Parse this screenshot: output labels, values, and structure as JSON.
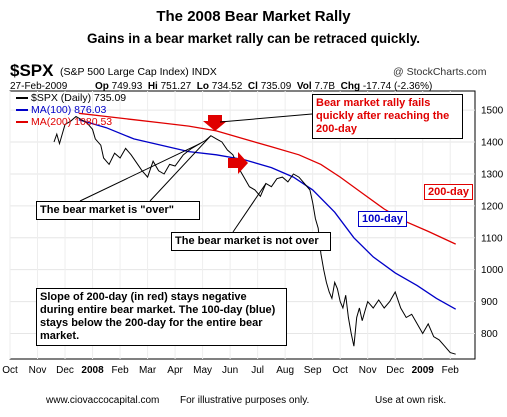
{
  "title": "The 2008 Bear Market Rally",
  "subtitle": "Gains in a bear market rally can be retraced quickly.",
  "header": {
    "symbol": "$SPX",
    "description": "(S&P 500 Large Cap Index) INDX",
    "brand": "@ StockCharts.com",
    "date": "27-Feb-2009",
    "op_label": "Op",
    "op": "749.93",
    "hi_label": "Hi",
    "hi": "751.27",
    "lo_label": "Lo",
    "lo": "734.52",
    "cl_label": "Cl",
    "cl": "735.09",
    "vol_label": "Vol",
    "vol": "7.7B",
    "chg_label": "Chg",
    "chg": "-17.74 (-2.36%)"
  },
  "legend": [
    {
      "label": "$SPX (Daily) 735.09",
      "color": "#000000"
    },
    {
      "label": "MA(100) 876.03",
      "color": "#0000c8"
    },
    {
      "label": "MA(200) 1080.53",
      "color": "#e00000"
    }
  ],
  "annotations": {
    "rally_fails": "Bear market rally fails quickly after reaching the 200-day",
    "bear_over": "The bear market is \"over\"",
    "bear_not_over": "The bear market is not over",
    "slope": "Slope of 200-day (in red) stays negative during entire bear market.  The 100-day (blue) stays below the 200-day for the entire bear market.",
    "label_200": "200-day",
    "label_100": "100-day"
  },
  "footer": {
    "site": "www.ciovaccocapital.com",
    "illustrative": "For illustrative purposes only.",
    "risk": "Use at own risk."
  },
  "colors": {
    "price": "#000000",
    "ma100": "#0000c8",
    "ma200": "#e00000",
    "arrow": "#e00000"
  },
  "chart_data": {
    "type": "line",
    "title": "The 2008 Bear Market Rally",
    "x_labels": [
      "Oct",
      "Nov",
      "Dec",
      "2008",
      "Feb",
      "Mar",
      "Apr",
      "May",
      "Jun",
      "Jul",
      "Aug",
      "Sep",
      "Oct",
      "Nov",
      "Dec",
      "2009",
      "Feb"
    ],
    "y_ticks": [
      800,
      900,
      1000,
      1100,
      1200,
      1300,
      1400,
      1500
    ],
    "ylim": [
      720,
      1560
    ],
    "xlim": [
      0,
      16.9
    ],
    "series": [
      {
        "name": "$SPX (Daily)",
        "color": "#000000",
        "points": [
          [
            1.6,
            1400
          ],
          [
            1.7,
            1425
          ],
          [
            1.8,
            1395
          ],
          [
            2.0,
            1455
          ],
          [
            2.2,
            1465
          ],
          [
            2.4,
            1480
          ],
          [
            2.6,
            1470
          ],
          [
            2.8,
            1460
          ],
          [
            3.0,
            1440
          ],
          [
            3.1,
            1410
          ],
          [
            3.3,
            1390
          ],
          [
            3.4,
            1350
          ],
          [
            3.6,
            1330
          ],
          [
            3.8,
            1365
          ],
          [
            4.0,
            1350
          ],
          [
            4.2,
            1380
          ],
          [
            4.4,
            1360
          ],
          [
            4.6,
            1335
          ],
          [
            4.8,
            1310
          ],
          [
            5.0,
            1290
          ],
          [
            5.2,
            1340
          ],
          [
            5.4,
            1310
          ],
          [
            5.6,
            1300
          ],
          [
            5.8,
            1330
          ],
          [
            6.0,
            1325
          ],
          [
            6.3,
            1360
          ],
          [
            6.6,
            1380
          ],
          [
            6.9,
            1395
          ],
          [
            7.1,
            1405
          ],
          [
            7.3,
            1420
          ],
          [
            7.5,
            1410
          ],
          [
            7.7,
            1400
          ],
          [
            7.9,
            1375
          ],
          [
            8.1,
            1360
          ],
          [
            8.3,
            1320
          ],
          [
            8.5,
            1290
          ],
          [
            8.7,
            1260
          ],
          [
            8.9,
            1250
          ],
          [
            9.1,
            1230
          ],
          [
            9.3,
            1270
          ],
          [
            9.5,
            1260
          ],
          [
            9.7,
            1285
          ],
          [
            9.9,
            1290
          ],
          [
            10.1,
            1275
          ],
          [
            10.3,
            1300
          ],
          [
            10.5,
            1290
          ],
          [
            10.7,
            1270
          ],
          [
            10.9,
            1250
          ],
          [
            11.0,
            1210
          ],
          [
            11.1,
            1160
          ],
          [
            11.2,
            1130
          ],
          [
            11.3,
            1050
          ],
          [
            11.4,
            1000
          ],
          [
            11.5,
            960
          ],
          [
            11.6,
            930
          ],
          [
            11.7,
            910
          ],
          [
            11.8,
            960
          ],
          [
            11.9,
            940
          ],
          [
            12.0,
            900
          ],
          [
            12.1,
            880
          ],
          [
            12.2,
            920
          ],
          [
            12.3,
            850
          ],
          [
            12.4,
            800
          ],
          [
            12.5,
            760
          ],
          [
            12.6,
            850
          ],
          [
            12.7,
            880
          ],
          [
            12.8,
            840
          ],
          [
            12.9,
            870
          ],
          [
            13.0,
            900
          ],
          [
            13.2,
            880
          ],
          [
            13.4,
            905
          ],
          [
            13.6,
            880
          ],
          [
            13.8,
            900
          ],
          [
            14.0,
            930
          ],
          [
            14.2,
            880
          ],
          [
            14.4,
            850
          ],
          [
            14.6,
            860
          ],
          [
            14.8,
            830
          ],
          [
            15.0,
            800
          ],
          [
            15.2,
            830
          ],
          [
            15.4,
            790
          ],
          [
            15.6,
            780
          ],
          [
            15.8,
            760
          ],
          [
            16.0,
            740
          ],
          [
            16.2,
            735
          ]
        ]
      },
      {
        "name": "MA(100)",
        "color": "#0000c8",
        "points": [
          [
            2.5,
            1470
          ],
          [
            3.5,
            1445
          ],
          [
            4.5,
            1410
          ],
          [
            5.5,
            1390
          ],
          [
            6.5,
            1370
          ],
          [
            7.5,
            1360
          ],
          [
            8.5,
            1345
          ],
          [
            9.5,
            1320
          ],
          [
            10.3,
            1290
          ],
          [
            11.0,
            1250
          ],
          [
            11.8,
            1180
          ],
          [
            12.5,
            1100
          ],
          [
            13.2,
            1040
          ],
          [
            14.0,
            990
          ],
          [
            14.8,
            950
          ],
          [
            15.5,
            910
          ],
          [
            16.2,
            876
          ]
        ]
      },
      {
        "name": "MA(200)",
        "color": "#e00000",
        "points": [
          [
            2.5,
            1490
          ],
          [
            3.5,
            1480
          ],
          [
            4.5,
            1470
          ],
          [
            5.5,
            1460
          ],
          [
            6.5,
            1450
          ],
          [
            7.5,
            1435
          ],
          [
            8.5,
            1410
          ],
          [
            9.5,
            1385
          ],
          [
            10.5,
            1360
          ],
          [
            11.3,
            1330
          ],
          [
            12.0,
            1290
          ],
          [
            12.8,
            1240
          ],
          [
            13.6,
            1190
          ],
          [
            14.4,
            1150
          ],
          [
            15.2,
            1120
          ],
          [
            16.2,
            1080
          ]
        ]
      }
    ]
  }
}
